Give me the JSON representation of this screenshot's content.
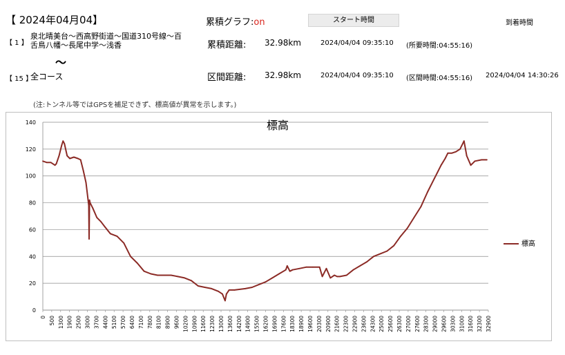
{
  "header": {
    "date": "【 2024年04月04】",
    "graph_label": "累積グラフ:",
    "graph_state": "on",
    "start_button": "スタート時間",
    "arrival_label": "到着時間"
  },
  "route": {
    "first_num": "【 1 】",
    "first_name_line1": "泉北晴美台～西高野街道～国道310号線～百",
    "first_name_line2": "舌鳥八幡～長尾中学～浅香",
    "separator": "〜",
    "last_num": "【 15 】",
    "last_name": "全コース"
  },
  "rows": [
    {
      "label": "累積距離:",
      "distance": "32.98km",
      "start": "2024/04/04 09:35:10",
      "duration": "(所要時間:04:55:16)",
      "arrival": ""
    },
    {
      "label": "区間距離:",
      "distance": "32.98km",
      "start": "2024/04/04 09:35:10",
      "duration": "(区間時間:04:55:16)",
      "arrival": "2024/04/04 14:30:26"
    }
  ],
  "note": "(注:トンネル等ではGPSを補足できず、標高値が異常を示します。)",
  "chart_data": {
    "type": "line",
    "title": "標高",
    "ylim": [
      0,
      140
    ],
    "yticks": [
      0,
      20,
      40,
      60,
      80,
      100,
      120,
      140
    ],
    "xlim": [
      0,
      33000
    ],
    "xticks": [
      0,
      500,
      1300,
      1900,
      2500,
      3000,
      3700,
      4400,
      5100,
      5700,
      6400,
      7100,
      7800,
      8100,
      8900,
      9600,
      10200,
      10900,
      11600,
      12300,
      13000,
      13600,
      14200,
      14900,
      15500,
      16200,
      16900,
      17600,
      18300,
      18900,
      19600,
      20300,
      20900,
      21600,
      22300,
      22900,
      23600,
      24300,
      25000,
      25600,
      26300,
      27000,
      27600,
      28300,
      29000,
      29600,
      30300,
      31000,
      31600,
      32300,
      32900
    ],
    "grid": true,
    "legend_position": "right",
    "line_color": "#8b2a25",
    "series": [
      {
        "name": "標高",
        "x": [
          0,
          300,
          600,
          900,
          1000,
          1200,
          1400,
          1500,
          1600,
          1800,
          2000,
          2300,
          2600,
          2800,
          3000,
          3200,
          3400,
          3430,
          3460,
          3500,
          3700,
          4000,
          4300,
          4600,
          5000,
          5500,
          6000,
          6500,
          7000,
          7500,
          8000,
          8500,
          9000,
          9500,
          10000,
          10500,
          11000,
          11500,
          12000,
          12500,
          13000,
          13300,
          13500,
          13600,
          13800,
          14200,
          15000,
          15500,
          16000,
          16500,
          17000,
          17500,
          18000,
          18100,
          18300,
          18500,
          19000,
          19500,
          20000,
          20500,
          20700,
          21000,
          21300,
          21600,
          21800,
          22000,
          22500,
          23000,
          23500,
          24000,
          24500,
          25000,
          25500,
          26000,
          26500,
          27000,
          27500,
          28000,
          28500,
          29000,
          29500,
          29800,
          30000,
          30300,
          30600,
          30900,
          31200,
          31400,
          31700,
          32000,
          32500,
          32900
        ],
        "values": [
          111,
          110,
          110,
          108,
          109,
          115,
          123,
          126,
          124,
          115,
          113,
          114,
          113,
          112,
          104,
          95,
          78,
          53,
          82,
          80,
          76,
          69,
          66,
          62,
          57,
          55,
          50,
          40,
          35,
          29,
          27,
          26,
          26,
          26,
          25,
          24,
          22,
          18,
          17,
          16,
          14,
          12,
          7,
          12,
          15,
          15,
          16,
          17,
          19,
          21,
          24,
          27,
          30,
          33,
          29,
          30,
          31,
          32,
          32,
          32,
          25,
          31,
          24,
          26,
          25,
          25,
          26,
          30,
          33,
          36,
          40,
          42,
          44,
          48,
          55,
          61,
          69,
          77,
          88,
          98,
          108,
          113,
          117,
          117,
          118,
          120,
          126,
          115,
          108,
          111,
          112,
          112
        ]
      }
    ]
  }
}
